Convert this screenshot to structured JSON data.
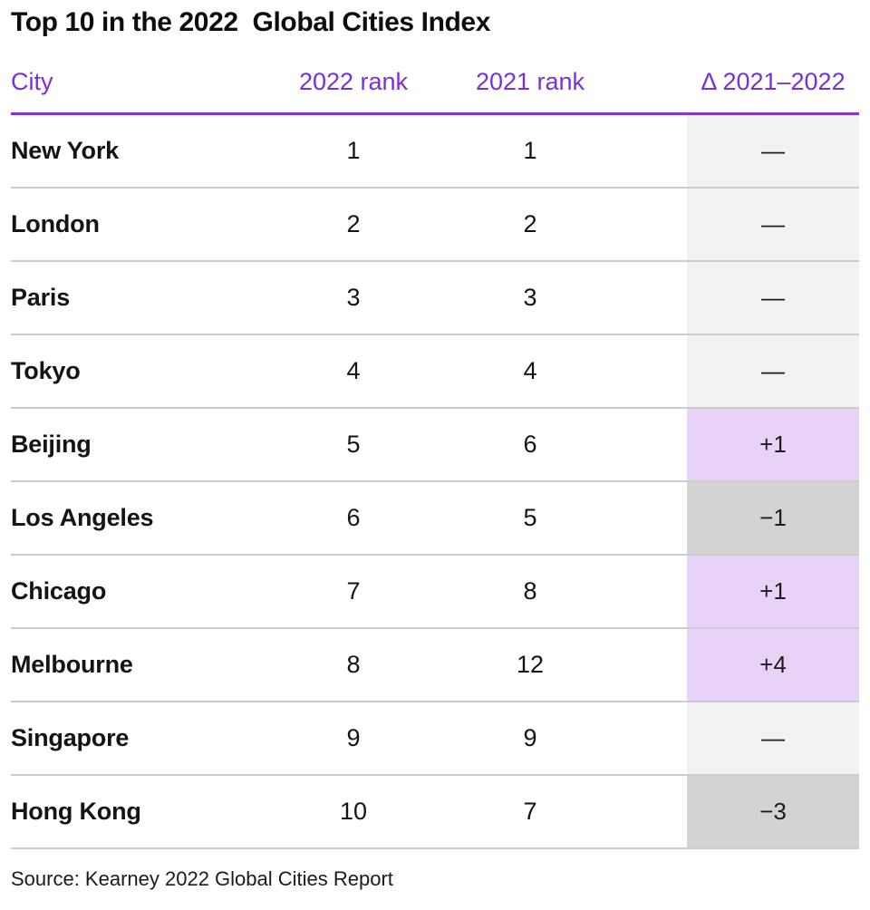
{
  "title": "Top 10 in the 2022  Global Cities Index",
  "header": {
    "city": "City",
    "rank2022": "2022 rank",
    "rank2021": "2021 rank",
    "delta": "Δ 2021–2022"
  },
  "rows": [
    {
      "city": "New York",
      "rank2022": "1",
      "rank2021": "1",
      "delta": "—",
      "change": "none"
    },
    {
      "city": "London",
      "rank2022": "2",
      "rank2021": "2",
      "delta": "—",
      "change": "none"
    },
    {
      "city": "Paris",
      "rank2022": "3",
      "rank2021": "3",
      "delta": "—",
      "change": "none"
    },
    {
      "city": "Tokyo",
      "rank2022": "4",
      "rank2021": "4",
      "delta": "—",
      "change": "none"
    },
    {
      "city": "Beijing",
      "rank2022": "5",
      "rank2021": "6",
      "delta": "+1",
      "change": "up"
    },
    {
      "city": "Los Angeles",
      "rank2022": "6",
      "rank2021": "5",
      "delta": "−1",
      "change": "down"
    },
    {
      "city": "Chicago",
      "rank2022": "7",
      "rank2021": "8",
      "delta": "+1",
      "change": "up"
    },
    {
      "city": "Melbourne",
      "rank2022": "8",
      "rank2021": "12",
      "delta": "+4",
      "change": "up"
    },
    {
      "city": "Singapore",
      "rank2022": "9",
      "rank2021": "9",
      "delta": "—",
      "change": "none"
    },
    {
      "city": "Hong Kong",
      "rank2022": "10",
      "rank2021": "7",
      "delta": "−3",
      "change": "down"
    }
  ],
  "source": "Source: Kearney 2022 Global Cities Report",
  "colors": {
    "title_text": "#0d0d0d",
    "header_text": "#7b2fd9",
    "header_rule": "#8833d6",
    "row_separator": "#cccccc",
    "delta_none_bg": "#f2f2f2",
    "delta_up_bg": "#e8d2f8",
    "delta_down_bg": "#d4d3d4"
  },
  "chart_data": {
    "type": "table",
    "title": "Top 10 in the 2022 Global Cities Index",
    "columns": [
      "City",
      "2022 rank",
      "2021 rank",
      "Δ 2021–2022"
    ],
    "rows": [
      [
        "New York",
        1,
        1,
        0
      ],
      [
        "London",
        2,
        2,
        0
      ],
      [
        "Paris",
        3,
        3,
        0
      ],
      [
        "Tokyo",
        4,
        4,
        0
      ],
      [
        "Beijing",
        5,
        6,
        1
      ],
      [
        "Los Angeles",
        6,
        5,
        -1
      ],
      [
        "Chicago",
        7,
        8,
        1
      ],
      [
        "Melbourne",
        8,
        12,
        4
      ],
      [
        "Singapore",
        9,
        9,
        0
      ],
      [
        "Hong Kong",
        10,
        7,
        -3
      ]
    ],
    "legend": {
      "up_highlight": "light purple cell = rank improved",
      "down_highlight": "gray cell = rank declined",
      "none_highlight": "light gray cell = no change"
    },
    "source": "Source: Kearney 2022 Global Cities Report"
  }
}
